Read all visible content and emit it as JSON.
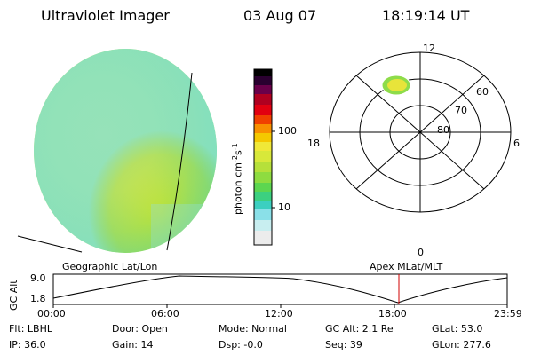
{
  "header": {
    "instrument": "Ultraviolet Imager",
    "date": "03 Aug 07",
    "time": "18:19:14 UT"
  },
  "colorbar": {
    "ticks": [
      "100",
      "10"
    ],
    "unit_main": "photon cm",
    "unit_exp1": "-2",
    "unit_s": "s",
    "unit_exp2": "-1"
  },
  "polar_plot": {
    "clock_labels": [
      "12",
      "18",
      "6",
      "0"
    ],
    "lat_labels": [
      "60",
      "70",
      "80"
    ]
  },
  "timeline": {
    "left_title": "Geographic Lat/Lon",
    "right_title": "Apex  MLat/MLT",
    "axis_label": "GC Alt",
    "y_ticks": [
      "9.0",
      "1.8"
    ],
    "x_ticks": [
      "00:00",
      "06:00",
      "12:00",
      "18:00",
      "23:59"
    ],
    "current_time_marker": "18:19"
  },
  "info": {
    "row1": {
      "flt": "Flt: LBHL",
      "door": "Door: Open",
      "mode": "Mode: Normal",
      "gcalt": "GC Alt: 2.1 Re",
      "glat": "GLat:  53.0"
    },
    "row2": {
      "ip": "IP: 36.0",
      "gain": "Gain: 14",
      "dsp": "Dsp:  -0.0",
      "seq": "Seq: 39",
      "glon": "GLon: 277.6"
    }
  },
  "colors": {
    "disk_main": "#c8e636",
    "disk_edge": "#6bd39a",
    "disk_center": "#f0e83a",
    "marker_line": "#d00000"
  }
}
